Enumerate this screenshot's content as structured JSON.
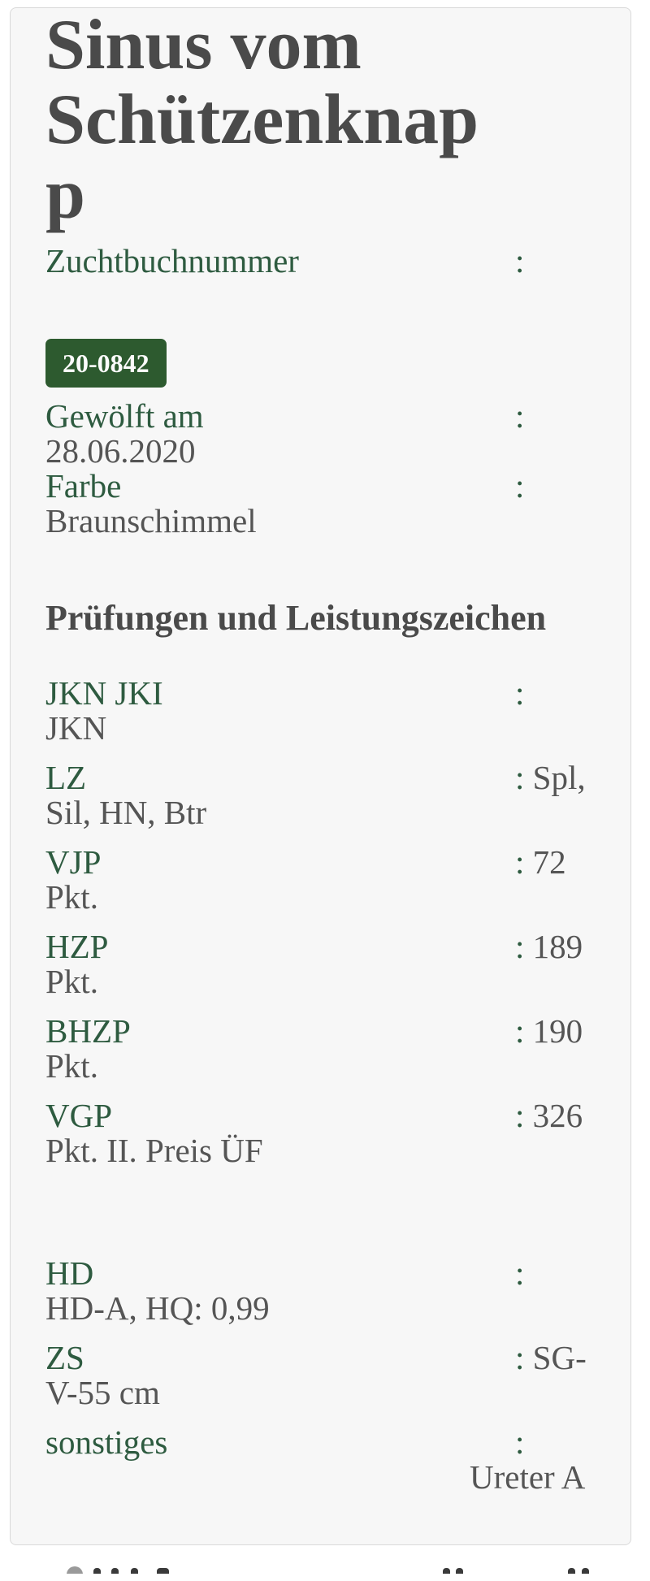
{
  "title": "Sinus vom Schützenknapp",
  "colors": {
    "label_green": "#2e5b40",
    "badge_green": "#2d5a2f",
    "value_gray": "#555555",
    "heading_gray": "#4a4a4a",
    "card_bg": "#f7f7f7",
    "card_border": "#d9d9d9"
  },
  "colon": ":",
  "fields_top": [
    {
      "label": "Zuchtbuchnummer",
      "badge": "20-0842"
    },
    {
      "label": "Gewölft am",
      "value": "28.06.2020",
      "block": true
    },
    {
      "label": "Farbe",
      "value": "Braunschimmel",
      "block": true
    }
  ],
  "section_heading": "Prüfungen und Leistungszeichen",
  "fields_tests": [
    {
      "label": "JKN JKI",
      "value": "JKN",
      "block": true
    },
    {
      "label": "LZ",
      "value": "Spl, Sil, HN, Btr"
    },
    {
      "label": "VJP",
      "value": "72 Pkt."
    },
    {
      "label": "HZP",
      "value": "189 Pkt."
    },
    {
      "label": "BHZP",
      "value": "190 Pkt."
    },
    {
      "label": "VGP",
      "value": "326 Pkt. II. Preis ÜF"
    }
  ],
  "fields_health": [
    {
      "label": "HD",
      "value": "HD-A, HQ: 0,99",
      "block": true
    },
    {
      "label": "ZS",
      "value": "SG-V-55 cm"
    },
    {
      "label": "sonstiges",
      "value": "Ureter A",
      "block": true,
      "indent": true
    }
  ]
}
